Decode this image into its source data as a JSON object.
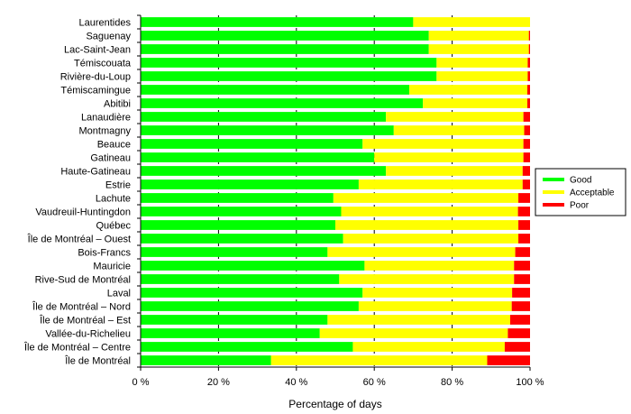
{
  "chart_data": {
    "type": "bar",
    "orientation": "horizontal",
    "stacked": true,
    "title": "",
    "xlabel": "Percentage of days",
    "ylabel": "",
    "xlim": [
      0,
      100
    ],
    "xticks": [
      0,
      20,
      40,
      60,
      80,
      100
    ],
    "xtick_labels": [
      "0 %",
      "20 %",
      "40 %",
      "60 %",
      "80 %",
      "100 %"
    ],
    "grid": "vertical dashed",
    "legend_position": "right",
    "categories": [
      "Laurentides",
      "Saguenay",
      "Lac-Saint-Jean",
      "Témiscouata",
      "Rivière-du-Loup",
      "Témiscamingue",
      "Abitibi",
      "Lanaudière",
      "Montmagny",
      "Beauce",
      "Gatineau",
      "Haute-Gatineau",
      "Estrie",
      "Lachute",
      "Vaudreuil-Huntingdon",
      "Québec",
      "Île de Montréal – Ouest",
      "Bois-Francs",
      "Mauricie",
      "Rive-Sud de Montréal",
      "Laval",
      "Île de Montréal – Nord",
      "Île de Montréal – Est",
      "Vallée-du-Richelieu",
      "Île de Montréal – Centre",
      "Île de Montréal"
    ],
    "series": [
      {
        "name": "Good",
        "color": "#00ff00",
        "values": [
          70,
          74,
          74,
          76,
          76,
          69,
          72.5,
          63,
          65,
          57,
          60,
          63,
          56,
          49.5,
          51.5,
          50,
          52,
          48,
          57.5,
          51,
          57,
          56,
          48,
          46,
          54.5,
          33.5
        ]
      },
      {
        "name": "Acceptable",
        "color": "#ffff00",
        "values": [
          30,
          25.7,
          25.7,
          23.4,
          23.4,
          30.3,
          26.8,
          35.3,
          33.5,
          41.3,
          38.3,
          35.1,
          42.1,
          47.5,
          45.4,
          47,
          45,
          48.2,
          38.4,
          44.9,
          38.4,
          39.3,
          46.9,
          48.3,
          39,
          55.5
        ]
      },
      {
        "name": "Poor",
        "color": "#ff0000",
        "values": [
          0,
          0.3,
          0.3,
          0.6,
          0.6,
          0.7,
          0.7,
          1.7,
          1.5,
          1.7,
          1.7,
          1.9,
          1.9,
          3,
          3.1,
          3,
          3,
          3.8,
          4.1,
          4.1,
          4.6,
          4.7,
          5.1,
          5.7,
          6.5,
          11
        ]
      }
    ]
  }
}
